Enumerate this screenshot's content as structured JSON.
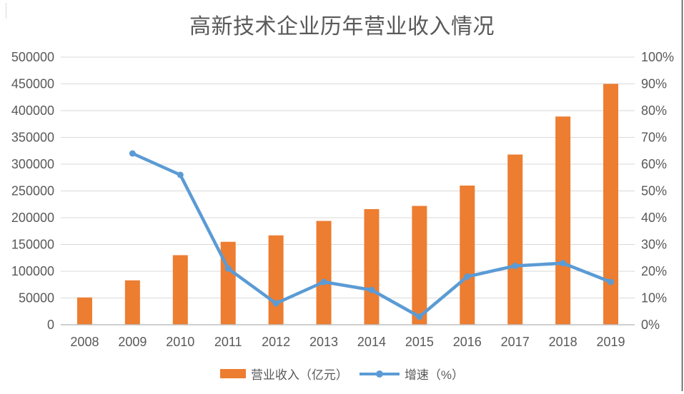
{
  "chart_data": {
    "type": "bar",
    "title": "高新技术企业历年营业收入情况",
    "categories": [
      "2008",
      "2009",
      "2010",
      "2011",
      "2012",
      "2013",
      "2014",
      "2015",
      "2016",
      "2017",
      "2018",
      "2019"
    ],
    "series": [
      {
        "name": "营业收入（亿元）",
        "type": "bar",
        "axis": "left",
        "color": "#ED7D31",
        "values": [
          51000,
          83000,
          130000,
          155000,
          167000,
          194000,
          216000,
          222000,
          260000,
          318000,
          389000,
          450000
        ]
      },
      {
        "name": "增速（%）",
        "type": "line",
        "axis": "right",
        "color": "#5B9BD5",
        "values": [
          null,
          64,
          56,
          21,
          8,
          16,
          13,
          3,
          18,
          22,
          23,
          16
        ]
      }
    ],
    "left_axis": {
      "min": 0,
      "max": 500000,
      "step": 50000,
      "tick_labels": [
        "0",
        "50000",
        "100000",
        "150000",
        "200000",
        "250000",
        "300000",
        "350000",
        "400000",
        "450000",
        "500000"
      ]
    },
    "right_axis": {
      "min": 0,
      "max": 100,
      "step": 10,
      "tick_labels": [
        "0%",
        "10%",
        "20%",
        "30%",
        "40%",
        "50%",
        "60%",
        "70%",
        "80%",
        "90%",
        "100%"
      ]
    },
    "grid": true,
    "legend_position": "bottom",
    "colors": {
      "bar": "#ED7D31",
      "line": "#5B9BD5",
      "text": "#595959",
      "gridline": "#D9D9D9",
      "axis_line": "#BFBFBF",
      "right_border": "#4d4d4d"
    }
  }
}
